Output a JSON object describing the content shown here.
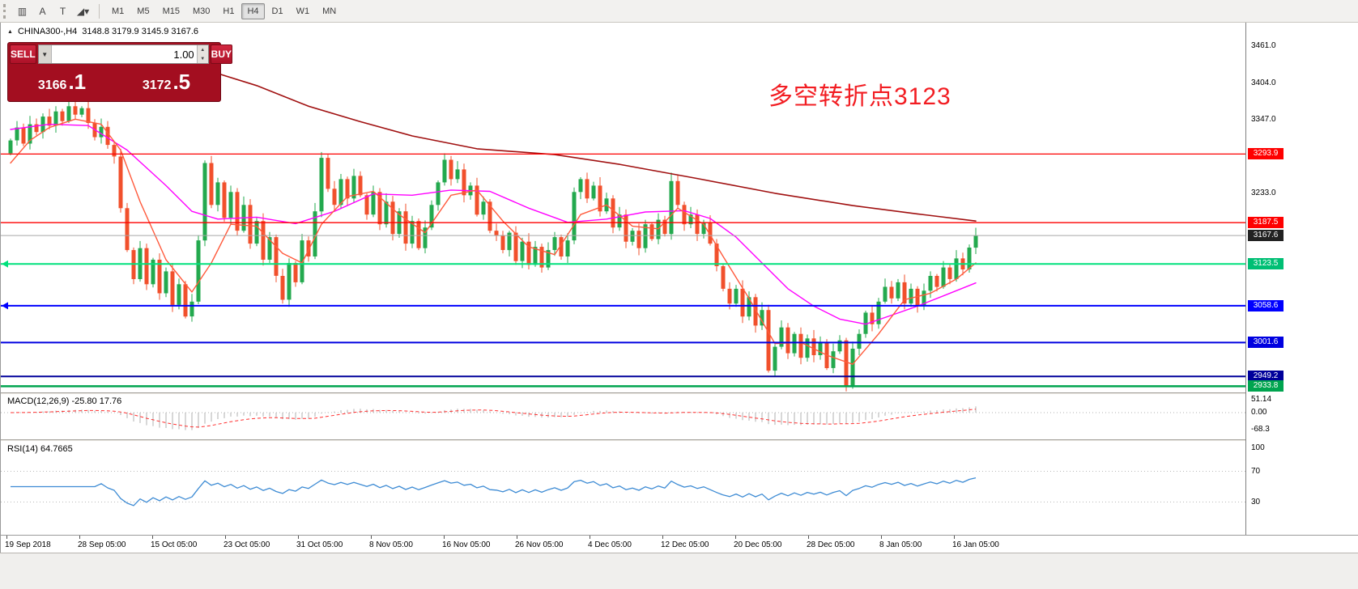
{
  "glyphs": {
    "up": "▲",
    "down": "▼"
  },
  "toolbar": {
    "icons": [
      {
        "name": "tick-chart-icon-button",
        "glyph": "▥"
      },
      {
        "name": "font-a-icon-button",
        "glyph": "A"
      },
      {
        "name": "text-label-icon-button",
        "glyph": "T"
      },
      {
        "name": "shapes-dropdown-icon-button",
        "glyph": "◢▾"
      }
    ],
    "timeframes": [
      "M1",
      "M5",
      "M15",
      "M30",
      "H1",
      "H4",
      "D1",
      "W1",
      "MN"
    ],
    "active_timeframe": "H4"
  },
  "chart": {
    "symbol_arrow": "▲",
    "symbol_title": "CHINA300-,H4",
    "ohlc": "3148.8 3179.9 3145.9 3167.6",
    "annotation": {
      "text": "多空转折点3123",
      "color": "#f21d22"
    }
  },
  "trade_panel": {
    "sell_label": "SELL",
    "buy_label": "BUY",
    "volume": "1.00",
    "sell_price": {
      "big": "3166",
      "pips": ".1"
    },
    "buy_price": {
      "big": "3172",
      "pips": ".5"
    }
  },
  "price_axis": {
    "plain_labels": [
      {
        "price": 3461.0,
        "text": "3461.0"
      },
      {
        "price": 3404.0,
        "text": "3404.0"
      },
      {
        "price": 3347.0,
        "text": "3347.0"
      },
      {
        "price": 3233.0,
        "text": "3233.0"
      }
    ]
  },
  "levels": [
    {
      "price": 3293.9,
      "text": "3293.9",
      "line": "#fe0000",
      "badge": "#fe0000",
      "width": 1.3
    },
    {
      "price": 3187.5,
      "text": "3187.5",
      "line": "#fe0000",
      "badge": "#fe0000",
      "width": 1.3
    },
    {
      "price": 3167.6,
      "text": "3167.6",
      "line": "#a6a6a6",
      "badge": "#222222",
      "width": 1,
      "current": true
    },
    {
      "price": 3123.5,
      "text": "3123.5",
      "line": "#00e17c",
      "badge": "#00bf74",
      "width": 2,
      "marker": true
    },
    {
      "price": 3058.6,
      "text": "3058.6",
      "line": "#0000fe",
      "badge": "#0000fe",
      "width": 2,
      "marker": true
    },
    {
      "price": 3001.6,
      "text": "3001.6",
      "line": "#0000e0",
      "badge": "#0000e0",
      "width": 2
    },
    {
      "price": 2949.2,
      "text": "2949.2",
      "line": "#00009b",
      "badge": "#00009b",
      "width": 2
    },
    {
      "price": 2933.8,
      "text": "2933.8",
      "line": "#00a44f",
      "badge": "#00a44f",
      "width": 2.5
    }
  ],
  "macd": {
    "label": "MACD(12,26,9) -25.80 17.76",
    "scale": [
      {
        "v": 51.14,
        "text": "51.14"
      },
      {
        "v": 0,
        "text": "0.00"
      },
      {
        "v": -68.3,
        "text": "-68.3"
      }
    ]
  },
  "rsi": {
    "label": "RSI(14) 64.7665",
    "scale": [
      {
        "v": 100,
        "text": "100"
      },
      {
        "v": 70,
        "text": "70"
      },
      {
        "v": 30,
        "text": "30"
      }
    ],
    "levels": [
      70,
      30
    ]
  },
  "time_axis": [
    "19 Sep 2018",
    "28 Sep 05:00",
    "15 Oct 05:00",
    "23 Oct 05:00",
    "31 Oct 05:00",
    "8 Nov 05:00",
    "16 Nov 05:00",
    "26 Nov 05:00",
    "4 Dec 05:00",
    "12 Dec 05:00",
    "20 Dec 05:00",
    "28 Dec 05:00",
    "8 Jan 05:00",
    "16 Jan 05:00"
  ],
  "chart_data": {
    "type": "candlestick",
    "symbol": "CHINA300-",
    "timeframe": "H4",
    "ylim": [
      2921.8,
      3497.6
    ],
    "current_price": 3167.6,
    "first_open": 3295,
    "closes": [
      3315,
      3335,
      3310,
      3340,
      3328,
      3352,
      3338,
      3360,
      3345,
      3368,
      3355,
      3365,
      3342,
      3320,
      3336,
      3308,
      3290,
      3210,
      3145,
      3100,
      3148,
      3092,
      3130,
      3078,
      3112,
      3060,
      3092,
      3042,
      3065,
      3160,
      3280,
      3215,
      3250,
      3195,
      3235,
      3175,
      3215,
      3155,
      3190,
      3130,
      3165,
      3105,
      3068,
      3125,
      3095,
      3160,
      3135,
      3205,
      3288,
      3240,
      3215,
      3255,
      3225,
      3260,
      3230,
      3200,
      3235,
      3185,
      3220,
      3170,
      3205,
      3155,
      3190,
      3148,
      3180,
      3215,
      3250,
      3285,
      3255,
      3270,
      3230,
      3245,
      3200,
      3220,
      3175,
      3168,
      3145,
      3172,
      3128,
      3158,
      3122,
      3150,
      3118,
      3145,
      3165,
      3135,
      3160,
      3235,
      3255,
      3225,
      3245,
      3205,
      3225,
      3180,
      3200,
      3158,
      3175,
      3148,
      3185,
      3162,
      3192,
      3170,
      3252,
      3215,
      3185,
      3200,
      3170,
      3188,
      3155,
      3120,
      3085,
      3062,
      3085,
      3042,
      3072,
      3028,
      3052,
      2958,
      2995,
      3025,
      2985,
      3015,
      2978,
      3008,
      2982,
      3002,
      2962,
      2988,
      3005,
      2935,
      2992,
      3015,
      3048,
      3030,
      3065,
      3088,
      3070,
      3095,
      3062,
      3085,
      3058,
      3082,
      3105,
      3088,
      3118,
      3100,
      3132,
      3115,
      3148.8,
      3167.6
    ],
    "ma_slow": [
      [
        30,
        3425
      ],
      [
        38,
        3400
      ],
      [
        46,
        3368
      ],
      [
        54,
        3344
      ],
      [
        62,
        3322
      ],
      [
        72,
        3302
      ],
      [
        84,
        3293
      ],
      [
        94,
        3278
      ],
      [
        106,
        3256
      ],
      [
        118,
        3233
      ],
      [
        130,
        3214
      ],
      [
        140,
        3201
      ],
      [
        149,
        3190
      ]
    ],
    "ma_mid": [
      [
        0,
        3332
      ],
      [
        6,
        3340
      ],
      [
        12,
        3338
      ],
      [
        18,
        3300
      ],
      [
        24,
        3245
      ],
      [
        28,
        3205
      ],
      [
        32,
        3193
      ],
      [
        38,
        3196
      ],
      [
        44,
        3186
      ],
      [
        50,
        3205
      ],
      [
        56,
        3232
      ],
      [
        62,
        3230
      ],
      [
        68,
        3238
      ],
      [
        74,
        3236
      ],
      [
        80,
        3210
      ],
      [
        86,
        3188
      ],
      [
        92,
        3193
      ],
      [
        98,
        3204
      ],
      [
        104,
        3206
      ],
      [
        108,
        3194
      ],
      [
        112,
        3165
      ],
      [
        116,
        3125
      ],
      [
        120,
        3085
      ],
      [
        124,
        3058
      ],
      [
        128,
        3038
      ],
      [
        132,
        3030
      ],
      [
        136,
        3044
      ],
      [
        140,
        3058
      ],
      [
        144,
        3074
      ],
      [
        149,
        3094
      ]
    ],
    "ma_fast": [
      [
        0,
        3280
      ],
      [
        3,
        3315
      ],
      [
        6,
        3335
      ],
      [
        10,
        3348
      ],
      [
        14,
        3340
      ],
      [
        17,
        3300
      ],
      [
        20,
        3220
      ],
      [
        24,
        3130
      ],
      [
        28,
        3080
      ],
      [
        31,
        3125
      ],
      [
        34,
        3185
      ],
      [
        38,
        3182
      ],
      [
        42,
        3140
      ],
      [
        45,
        3125
      ],
      [
        48,
        3185
      ],
      [
        52,
        3228
      ],
      [
        56,
        3236
      ],
      [
        60,
        3200
      ],
      [
        64,
        3172
      ],
      [
        68,
        3230
      ],
      [
        72,
        3238
      ],
      [
        76,
        3190
      ],
      [
        80,
        3150
      ],
      [
        84,
        3138
      ],
      [
        88,
        3200
      ],
      [
        92,
        3215
      ],
      [
        96,
        3182
      ],
      [
        100,
        3178
      ],
      [
        103,
        3210
      ],
      [
        107,
        3185
      ],
      [
        110,
        3135
      ],
      [
        114,
        3070
      ],
      [
        118,
        3000
      ],
      [
        122,
        3002
      ],
      [
        126,
        2982
      ],
      [
        130,
        2968
      ],
      [
        134,
        3015
      ],
      [
        138,
        3068
      ],
      [
        142,
        3078
      ],
      [
        146,
        3100
      ],
      [
        149,
        3125
      ]
    ],
    "colors": {
      "bull": "#23a94e",
      "bear": "#f1502c",
      "ma_fast": "#ff5a3c",
      "ma_mid": "#ff00ff",
      "ma_slow": "#a01010",
      "macd_hist": "#bdbdbd",
      "macd_signal": "#ff3030",
      "rsi": "#3d8bd4"
    }
  }
}
